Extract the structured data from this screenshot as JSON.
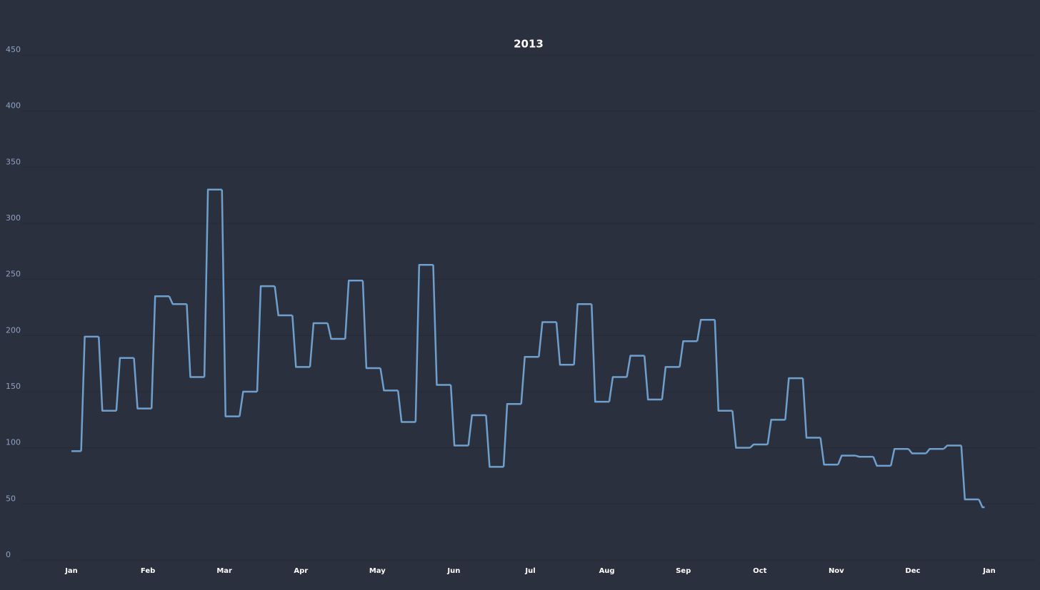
{
  "chart_data": {
    "type": "line",
    "title": "2013",
    "categories": [
      null,
      null,
      null,
      null,
      null,
      null,
      null,
      null,
      null,
      null,
      null,
      null,
      null,
      null,
      null,
      null,
      null,
      null,
      null,
      null,
      null,
      null,
      null,
      null,
      null,
      null,
      null,
      null,
      null,
      null,
      null,
      null,
      null,
      null,
      null,
      null,
      null,
      null,
      null,
      null,
      null,
      null,
      null,
      null,
      null,
      null,
      null,
      null,
      null,
      null,
      null,
      null,
      null
    ],
    "values": [
      97,
      199,
      133,
      180,
      135,
      235,
      228,
      163,
      330,
      128,
      150,
      244,
      218,
      172,
      211,
      197,
      249,
      171,
      151,
      123,
      263,
      156,
      102,
      129,
      83,
      139,
      181,
      212,
      174,
      228,
      141,
      163,
      182,
      143,
      172,
      195,
      214,
      133,
      100,
      103,
      125,
      162,
      109,
      85,
      93,
      92,
      84,
      99,
      95,
      99,
      102,
      54,
      47
    ],
    "color": "#6f9fcc",
    "xtick_labels": [
      "Jan",
      "Feb",
      "Mar",
      "Apr",
      "May",
      "Jun",
      "Jul",
      "Aug",
      "Sep",
      "Oct",
      "Nov",
      "Dec",
      "Jan"
    ],
    "ylim": [
      0,
      450
    ],
    "yticks": [
      0,
      50,
      100,
      150,
      200,
      250,
      300,
      350,
      400,
      450
    ],
    "grid": true
  }
}
